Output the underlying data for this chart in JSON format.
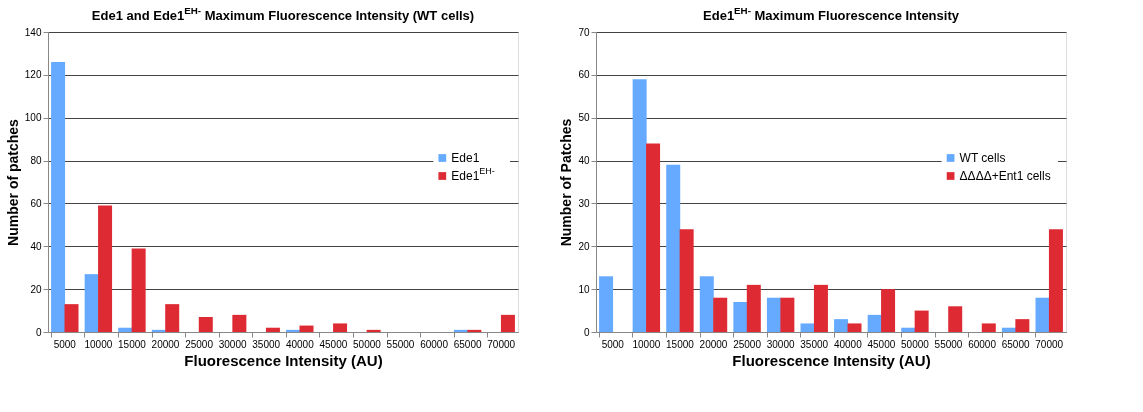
{
  "chart_data": [
    {
      "type": "bar",
      "title": "Ede1 and Ede1$^{EH-}$ Maximum Fluorescence Intensity (WT cells)",
      "xlabel": "Fluorescence Intensity (AU)",
      "ylabel": "Number of patches",
      "categories": [
        "5000",
        "10000",
        "15000",
        "20000",
        "25000",
        "30000",
        "35000",
        "40000",
        "45000",
        "50000",
        "55000",
        "60000",
        "65000",
        "70000"
      ],
      "series": [
        {
          "name": "Ede1",
          "color": "#66aaff",
          "values": [
            126,
            27,
            2,
            1,
            0,
            0,
            0,
            1,
            0,
            0,
            0,
            0,
            1,
            0
          ]
        },
        {
          "name": "Ede1$^{EH-}$",
          "color": "#dd2a33",
          "values": [
            13,
            59,
            39,
            13,
            7,
            8,
            2,
            3,
            4,
            1,
            0,
            0,
            1,
            8
          ]
        }
      ],
      "ylim": [
        0,
        140
      ],
      "yticks": [
        0,
        20,
        40,
        60,
        80,
        100,
        120,
        140
      ],
      "grid": "y",
      "legend": "right"
    },
    {
      "type": "bar",
      "title": "Ede1$^{EH-}$ Maximum Fluorescence Intensity",
      "xlabel": "Fluorescence Intensity (AU)",
      "ylabel": "Number of Patches",
      "categories": [
        "5000",
        "10000",
        "15000",
        "20000",
        "25000",
        "30000",
        "35000",
        "40000",
        "45000",
        "50000",
        "55000",
        "60000",
        "65000",
        "70000"
      ],
      "series": [
        {
          "name": "WT cells",
          "color": "#66aaff",
          "values": [
            13,
            59,
            39,
            13,
            7,
            8,
            2,
            3,
            4,
            1,
            0,
            0,
            1,
            8
          ]
        },
        {
          "name": "ΔΔΔΔ+Ent1 cells",
          "color": "#dd2a33",
          "values": [
            0,
            44,
            24,
            8,
            11,
            8,
            11,
            2,
            10,
            5,
            6,
            2,
            3,
            24
          ]
        }
      ],
      "ylim": [
        0,
        70
      ],
      "yticks": [
        0,
        10,
        20,
        30,
        40,
        50,
        60,
        70
      ],
      "grid": "y",
      "legend": "right"
    }
  ]
}
